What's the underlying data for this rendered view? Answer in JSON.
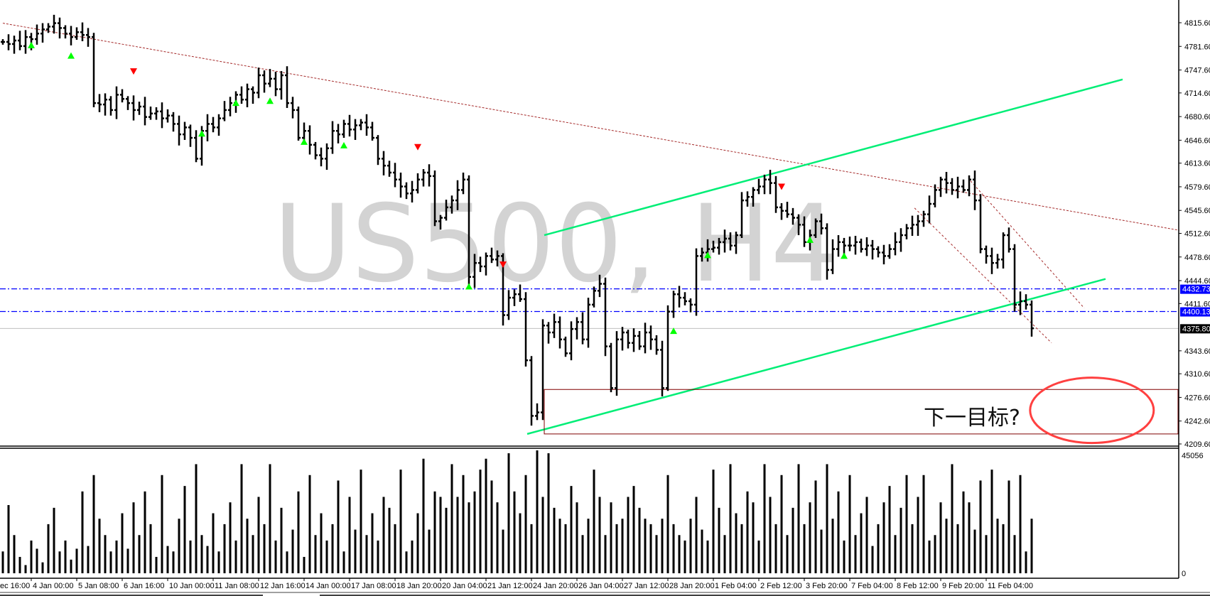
{
  "watermark": "US500, H4",
  "annotation_text": "下一目标?",
  "colors": {
    "bars": "#000000",
    "up_marker": "#00ff00",
    "down_marker": "#ff0000",
    "trend_line": "#a52a2a",
    "channel": "#00ee76",
    "level_line": "#0000ff",
    "current_price_line": "#c0c0c0",
    "target_box": "#800000",
    "ellipse": "#ff4040"
  },
  "chart_data": {
    "type": "ohlc-bar",
    "symbol": "US500",
    "timeframe": "H4",
    "ylim": [
      4209.6,
      4815.6
    ],
    "y_ticks": [
      "4815.60",
      "4781.60",
      "4747.60",
      "4714.60",
      "4680.60",
      "4646.60",
      "4613.60",
      "4579.60",
      "4545.60",
      "4512.60",
      "4478.60",
      "4444.60",
      "4411.60",
      "4343.60",
      "4310.60",
      "4276.60",
      "4242.60",
      "4209.60"
    ],
    "x_ticks": [
      {
        "bar": 0,
        "label": "ec 16:00"
      },
      {
        "bar": 5,
        "label": "4 Jan 00:00"
      },
      {
        "bar": 13,
        "label": "5 Jan 08:00"
      },
      {
        "bar": 21,
        "label": "6 Jan 16:00"
      },
      {
        "bar": 29,
        "label": "10 Jan 00:00"
      },
      {
        "bar": 37,
        "label": "11 Jan 08:00"
      },
      {
        "bar": 45,
        "label": "12 Jan 16:00"
      },
      {
        "bar": 53,
        "label": "14 Jan 00:00"
      },
      {
        "bar": 61,
        "label": "17 Jan 08:00"
      },
      {
        "bar": 69,
        "label": "18 Jan 20:00"
      },
      {
        "bar": 77,
        "label": "20 Jan 04:00"
      },
      {
        "bar": 85,
        "label": "21 Jan 12:00"
      },
      {
        "bar": 93,
        "label": "24 Jan 20:00"
      },
      {
        "bar": 101,
        "label": "26 Jan 04:00"
      },
      {
        "bar": 109,
        "label": "27 Jan 12:00"
      },
      {
        "bar": 117,
        "label": "28 Jan 20:00"
      },
      {
        "bar": 125,
        "label": "1 Feb 04:00"
      },
      {
        "bar": 133,
        "label": "2 Feb 12:00"
      },
      {
        "bar": 141,
        "label": "3 Feb 20:00"
      },
      {
        "bar": 149,
        "label": "7 Feb 04:00"
      },
      {
        "bar": 157,
        "label": "8 Feb 12:00"
      },
      {
        "bar": 165,
        "label": "9 Feb 20:00"
      },
      {
        "bar": 173,
        "label": "11 Feb 04:00"
      }
    ],
    "closes": [
      4788,
      4785,
      4790,
      4782,
      4795,
      4792,
      4800,
      4806,
      4810,
      4815,
      4808,
      4800,
      4795,
      4802,
      4798,
      4795,
      4700,
      4698,
      4705,
      4690,
      4712,
      4706,
      4700,
      4690,
      4695,
      4680,
      4685,
      4688,
      4678,
      4682,
      4670,
      4655,
      4665,
      4650,
      4620,
      4660,
      4670,
      4665,
      4678,
      4690,
      4700,
      4712,
      4705,
      4720,
      4715,
      4740,
      4728,
      4735,
      4720,
      4740,
      4700,
      4690,
      4650,
      4660,
      4640,
      4625,
      4620,
      4635,
      4660,
      4655,
      4670,
      4662,
      4668,
      4672,
      4665,
      4650,
      4620,
      4610,
      4600,
      4590,
      4580,
      4570,
      4575,
      4590,
      4600,
      4595,
      4530,
      4535,
      4550,
      4560,
      4575,
      4590,
      4450,
      4470,
      4465,
      4480,
      4475,
      4480,
      4395,
      4420,
      4425,
      4418,
      4330,
      4250,
      4255,
      4380,
      4370,
      4385,
      4360,
      4340,
      4375,
      4385,
      4360,
      4410,
      4430,
      4440,
      4350,
      4290,
      4360,
      4370,
      4355,
      4365,
      4350,
      4370,
      4360,
      4345,
      4290,
      4400,
      4425,
      4420,
      4415,
      4410,
      4480,
      4485,
      4490,
      4492,
      4500,
      4505,
      4495,
      4510,
      4560,
      4565,
      4575,
      4580,
      4590,
      4585,
      4550,
      4545,
      4540,
      4535,
      4525,
      4500,
      4510,
      4530,
      4520,
      4460,
      4490,
      4500,
      4495,
      4495,
      4500,
      4490,
      4495,
      4490,
      4485,
      4480,
      4490,
      4500,
      4510,
      4520,
      4525,
      4530,
      4540,
      4555,
      4575,
      4590,
      4585,
      4575,
      4580,
      4575,
      4590,
      4560,
      4490,
      4480,
      4470,
      4475,
      4510,
      4490,
      4410,
      4415,
      4410,
      4376
    ],
    "volume": {
      "max_label": "45056",
      "min_label": "0",
      "values": [
        8000,
        25000,
        14000,
        6000,
        3000,
        12000,
        9000,
        4000,
        18000,
        24000,
        8000,
        12000,
        5000,
        9000,
        30000,
        10000,
        36000,
        20000,
        14000,
        8000,
        12000,
        22000,
        9000,
        26000,
        14000,
        30000,
        18000,
        6000,
        36000,
        10000,
        8000,
        20000,
        32000,
        12000,
        40000,
        14000,
        10000,
        22000,
        8000,
        18000,
        26000,
        12000,
        40000,
        20000,
        14000,
        28000,
        18000,
        40000,
        12000,
        24000,
        8000,
        16000,
        30000,
        6000,
        36000,
        14000,
        22000,
        12000,
        18000,
        34000,
        8000,
        28000,
        16000,
        38000,
        14000,
        22000,
        12000,
        28000,
        24000,
        18000,
        38000,
        8000,
        12000,
        22000,
        42000,
        16000,
        30000,
        28000,
        24000,
        40000,
        28000,
        36000,
        26000,
        30000,
        38000,
        42000,
        34000,
        26000,
        16000,
        44000,
        30000,
        22000,
        36000,
        18000,
        45056,
        28000,
        44000,
        24000,
        20000,
        18000,
        32000,
        26000,
        14000,
        20000,
        38000,
        28000,
        14000,
        26000,
        18000,
        20000,
        28000,
        32000,
        24000,
        20000,
        18000,
        14000,
        20000,
        36000,
        18000,
        14000,
        12000,
        20000,
        28000,
        16000,
        12000,
        38000,
        24000,
        14000,
        40000,
        22000,
        18000,
        30000,
        26000,
        12000,
        40000,
        28000,
        18000,
        36000,
        14000,
        24000,
        40000,
        18000,
        26000,
        34000,
        16000,
        40000,
        20000,
        30000,
        12000,
        36000,
        14000,
        22000,
        28000,
        10000,
        18000,
        26000,
        32000,
        14000,
        24000,
        36000,
        18000,
        28000,
        36000,
        12000,
        14000,
        26000,
        20000,
        40000,
        18000,
        30000,
        26000,
        16000,
        34000,
        14000,
        38000,
        20000,
        18000,
        34000,
        14000,
        36000,
        8000,
        20000
      ]
    },
    "price_labels": [
      {
        "value": "4432.73",
        "price": 4432.73,
        "style": "blue"
      },
      {
        "value": "4400.13",
        "price": 4400.13,
        "style": "blue"
      },
      {
        "value": "4375.80",
        "price": 4375.8,
        "style": "current"
      }
    ],
    "markers": [
      {
        "bar": 5,
        "price": 4784,
        "dir": "up"
      },
      {
        "bar": 12,
        "price": 4769,
        "dir": "up"
      },
      {
        "bar": 35,
        "price": 4657,
        "dir": "up"
      },
      {
        "bar": 41,
        "price": 4701,
        "dir": "up"
      },
      {
        "bar": 47,
        "price": 4704,
        "dir": "up"
      },
      {
        "bar": 53,
        "price": 4645,
        "dir": "up"
      },
      {
        "bar": 60,
        "price": 4640,
        "dir": "up"
      },
      {
        "bar": 82,
        "price": 4437,
        "dir": "up"
      },
      {
        "bar": 118,
        "price": 4373,
        "dir": "up"
      },
      {
        "bar": 124,
        "price": 4482,
        "dir": "up"
      },
      {
        "bar": 142,
        "price": 4504,
        "dir": "up"
      },
      {
        "bar": 148,
        "price": 4481,
        "dir": "up"
      },
      {
        "bar": 23,
        "price": 4746,
        "dir": "down"
      },
      {
        "bar": 73,
        "price": 4637,
        "dir": "down"
      },
      {
        "bar": 88,
        "price": 4468,
        "dir": "down"
      },
      {
        "bar": 137,
        "price": 4580,
        "dir": "down"
      }
    ],
    "drawings": {
      "trend_line": {
        "from": [
          0,
          4815
        ],
        "to": [
          207,
          4517
        ]
      },
      "channel_upper": {
        "from": [
          95.25,
          4510
        ],
        "to": [
          197,
          4734
        ]
      },
      "channel_lower": {
        "from": [
          92.25,
          4224
        ],
        "to": [
          194,
          4447
        ]
      },
      "dashed_1": {
        "from": [
          160.4,
          4549
        ],
        "to": [
          184.5,
          4355
        ]
      },
      "dashed_2": {
        "from": [
          170.25,
          4588
        ],
        "to": [
          190.25,
          4405
        ]
      },
      "target_box": {
        "bar_from": 95.25,
        "price_top": 4288,
        "price_bottom": 4224
      },
      "target_ellipse": {
        "bar": 191.6,
        "price": 4258
      }
    }
  }
}
